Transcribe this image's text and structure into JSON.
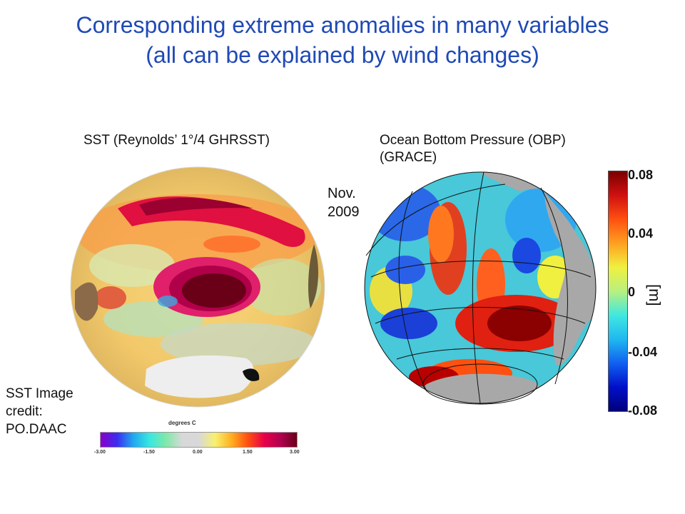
{
  "title_line1": "Corresponding extreme anomalies in many variables",
  "title_line2": "(all can be explained by wind changes)",
  "sst_label": "SST (Reynolds’ 1°/4 GHRSST)",
  "obp_label_line1": "Ocean Bottom Pressure (OBP)",
  "obp_label_line2": "(GRACE)",
  "date_line1": "Nov.",
  "date_line2": "2009",
  "credit_line1": "SST Image",
  "credit_line2": "credit:",
  "credit_line3": "PO.DAAC",
  "sst_colorbar": {
    "title": "degrees C",
    "ticks": [
      "-3.00",
      "-1.50",
      "0.00",
      "1.50",
      "3.00"
    ]
  },
  "obp_colorbar": {
    "unit": "[m]",
    "ticks": [
      "0.08",
      "0.04",
      "0",
      "-0.04",
      "-0.08"
    ]
  },
  "colors": {
    "title": "#1f49b6",
    "positive": "#8b0000",
    "negative": "#0018c8",
    "land": "#a8a8a8"
  }
}
